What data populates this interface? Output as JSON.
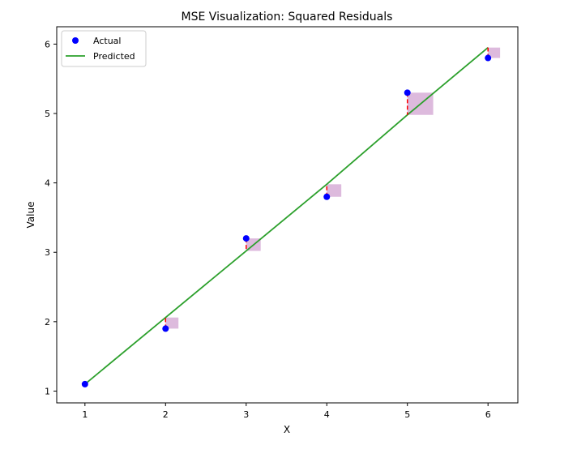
{
  "chart_data": {
    "type": "scatter",
    "title": "MSE Visualization: Squared Residuals",
    "xlabel": "X",
    "ylabel": "Value",
    "xlim": [
      0.65,
      6.37
    ],
    "ylim": [
      0.83,
      6.25
    ],
    "x_ticks": [
      "1",
      "2",
      "3",
      "4",
      "5",
      "6"
    ],
    "y_ticks": [
      "1",
      "2",
      "3",
      "4",
      "5",
      "6"
    ],
    "grid": false,
    "legend_position": "top-left",
    "series": [
      {
        "name": "Actual",
        "kind": "scatter",
        "color": "#0000ff",
        "x": [
          1,
          2,
          3,
          4,
          5,
          6
        ],
        "y": [
          1.1,
          1.9,
          3.2,
          3.8,
          5.3,
          5.8
        ]
      },
      {
        "name": "Predicted",
        "kind": "line",
        "color": "#2ca02c",
        "x": [
          1,
          2,
          3,
          4,
          5,
          6
        ],
        "y": [
          1.1,
          2.06,
          3.02,
          3.98,
          4.98,
          5.95
        ]
      }
    ],
    "residual_line_color": "#ff0000",
    "square_color": "#b366b3"
  }
}
